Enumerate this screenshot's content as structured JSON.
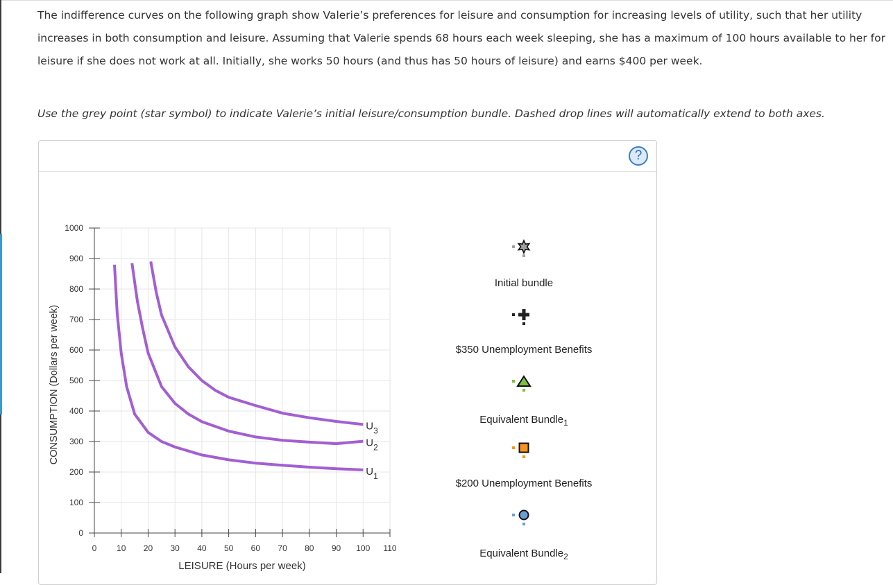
{
  "question": {
    "paragraph": "The indifference curves on the following graph show Valerie’s preferences for leisure and consumption for increasing levels of utility, such that her utility increases in both consumption and leisure. Assuming that Valerie spends 68 hours each week sleeping, she has a maximum of 100 hours available to her for leisure if she does not work at all. Initially, she works 50 hours (and thus has 50 hours of leisure) and earns $400 per week.",
    "instruction": "Use the grey point (star symbol) to indicate Valerie’s initial leisure/consumption bundle. Dashed drop lines will automatically extend to both axes."
  },
  "panel": {
    "help_label": "?"
  },
  "chart_data": {
    "type": "line",
    "xlabel": "LEISURE (Hours per week)",
    "ylabel": "CONSUMPTION (Dollars per week)",
    "xlim": [
      0,
      110
    ],
    "ylim": [
      0,
      1000
    ],
    "x_ticks": [
      "0",
      "10",
      "20",
      "30",
      "40",
      "50",
      "60",
      "70",
      "80",
      "90",
      "100",
      "110"
    ],
    "y_ticks": [
      "0",
      "100",
      "200",
      "300",
      "400",
      "500",
      "600",
      "700",
      "800",
      "900",
      "1000"
    ],
    "grid": true,
    "color": "#a25fd2",
    "series": [
      {
        "name": "U",
        "sub": "1",
        "x": [
          7.5,
          8.5,
          10,
          12,
          15,
          20,
          25,
          30,
          40,
          50,
          60,
          70,
          80,
          90,
          100
        ],
        "y": [
          880,
          720,
          590,
          480,
          390,
          330,
          300,
          282,
          256,
          240,
          229,
          222,
          216,
          211,
          207
        ]
      },
      {
        "name": "U",
        "sub": "2",
        "x": [
          14,
          16,
          18,
          20,
          25,
          30,
          35,
          40,
          50,
          60,
          70,
          80,
          90,
          100
        ],
        "y": [
          885,
          760,
          670,
          590,
          480,
          425,
          390,
          365,
          334,
          315,
          304,
          298,
          293,
          301
        ]
      },
      {
        "name": "U",
        "sub": "3",
        "x": [
          21,
          23,
          25,
          30,
          35,
          40,
          45,
          50,
          60,
          70,
          80,
          90,
          100
        ],
        "y": [
          890,
          790,
          715,
          610,
          545,
          500,
          468,
          445,
          418,
          393,
          378,
          366,
          356
        ]
      }
    ]
  },
  "tools": [
    {
      "label": "Initial bundle",
      "sub": "",
      "shape": "star",
      "color": "#a0a0a0"
    },
    {
      "label": "$350 Unemployment Benefits",
      "sub": "",
      "shape": "plus",
      "color": "#222222"
    },
    {
      "label": "Equivalent Bundle",
      "sub": "1",
      "shape": "triangle",
      "color": "#7ac143"
    },
    {
      "label": "$200 Unemployment Benefits",
      "sub": "",
      "shape": "square",
      "color": "#f7941d"
    },
    {
      "label": "Equivalent Bundle",
      "sub": "2",
      "shape": "circle",
      "color": "#6b9fd4"
    }
  ]
}
